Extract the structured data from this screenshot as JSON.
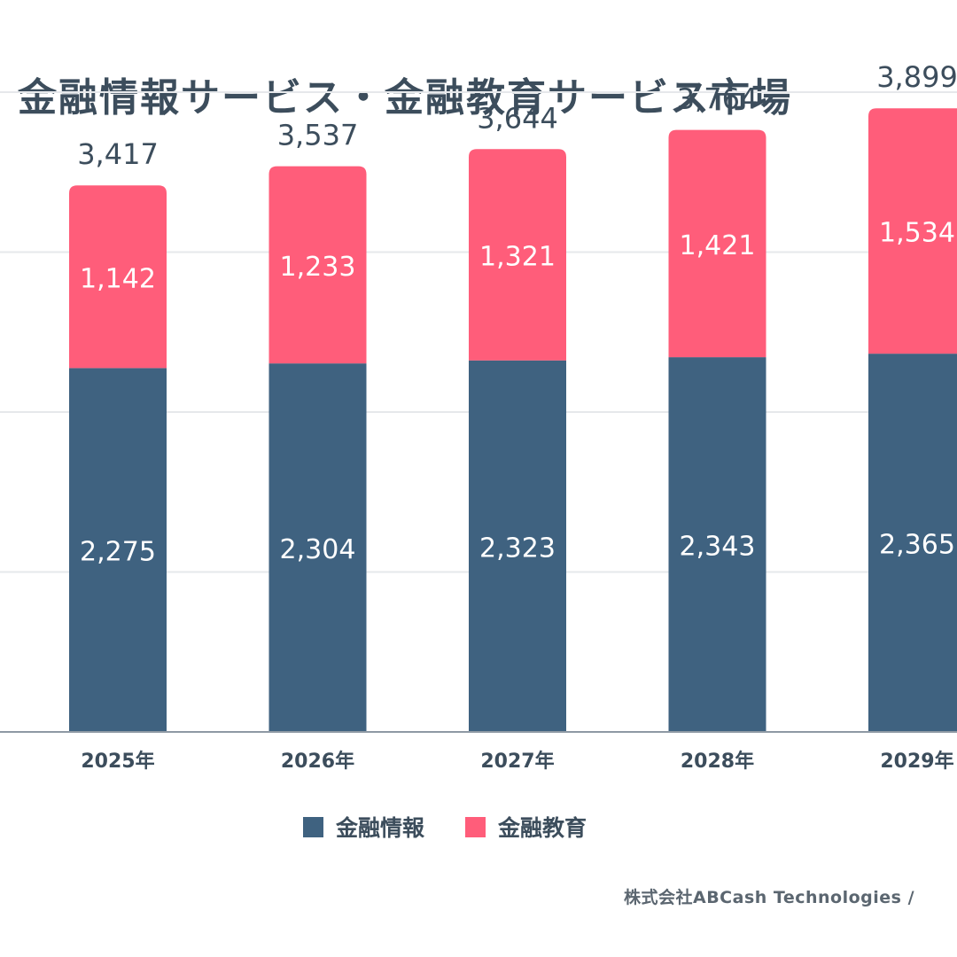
{
  "title": "金融情報サービス・金融教育サービス市場",
  "source": "株式会社ABCash Technologies /",
  "colors": {
    "info": "#3f6280",
    "edu": "#ff5d7a",
    "text": "#3c4d5c"
  },
  "chart_data": {
    "type": "bar",
    "stacked": true,
    "categories": [
      "2025年",
      "2026年",
      "2027年",
      "2028年",
      "2029年"
    ],
    "series": [
      {
        "name": "金融情報",
        "values": [
          2275,
          2304,
          2323,
          2343,
          2365
        ]
      },
      {
        "name": "金融教育",
        "values": [
          1142,
          1233,
          1321,
          1421,
          1534
        ]
      }
    ],
    "totals": [
      3417,
      3537,
      3644,
      3764,
      3899
    ],
    "total_labels": [
      "3,417",
      "3,537",
      "3,644",
      "3,764",
      "3,899"
    ],
    "value_labels": [
      [
        "2,275",
        "2,304",
        "2,323",
        "2,343",
        "2,365"
      ],
      [
        "1,142",
        "1,233",
        "1,321",
        "1,421",
        "1,534"
      ]
    ],
    "ylim": [
      0,
      4000
    ],
    "grid": true,
    "legend": "bottom-center"
  }
}
